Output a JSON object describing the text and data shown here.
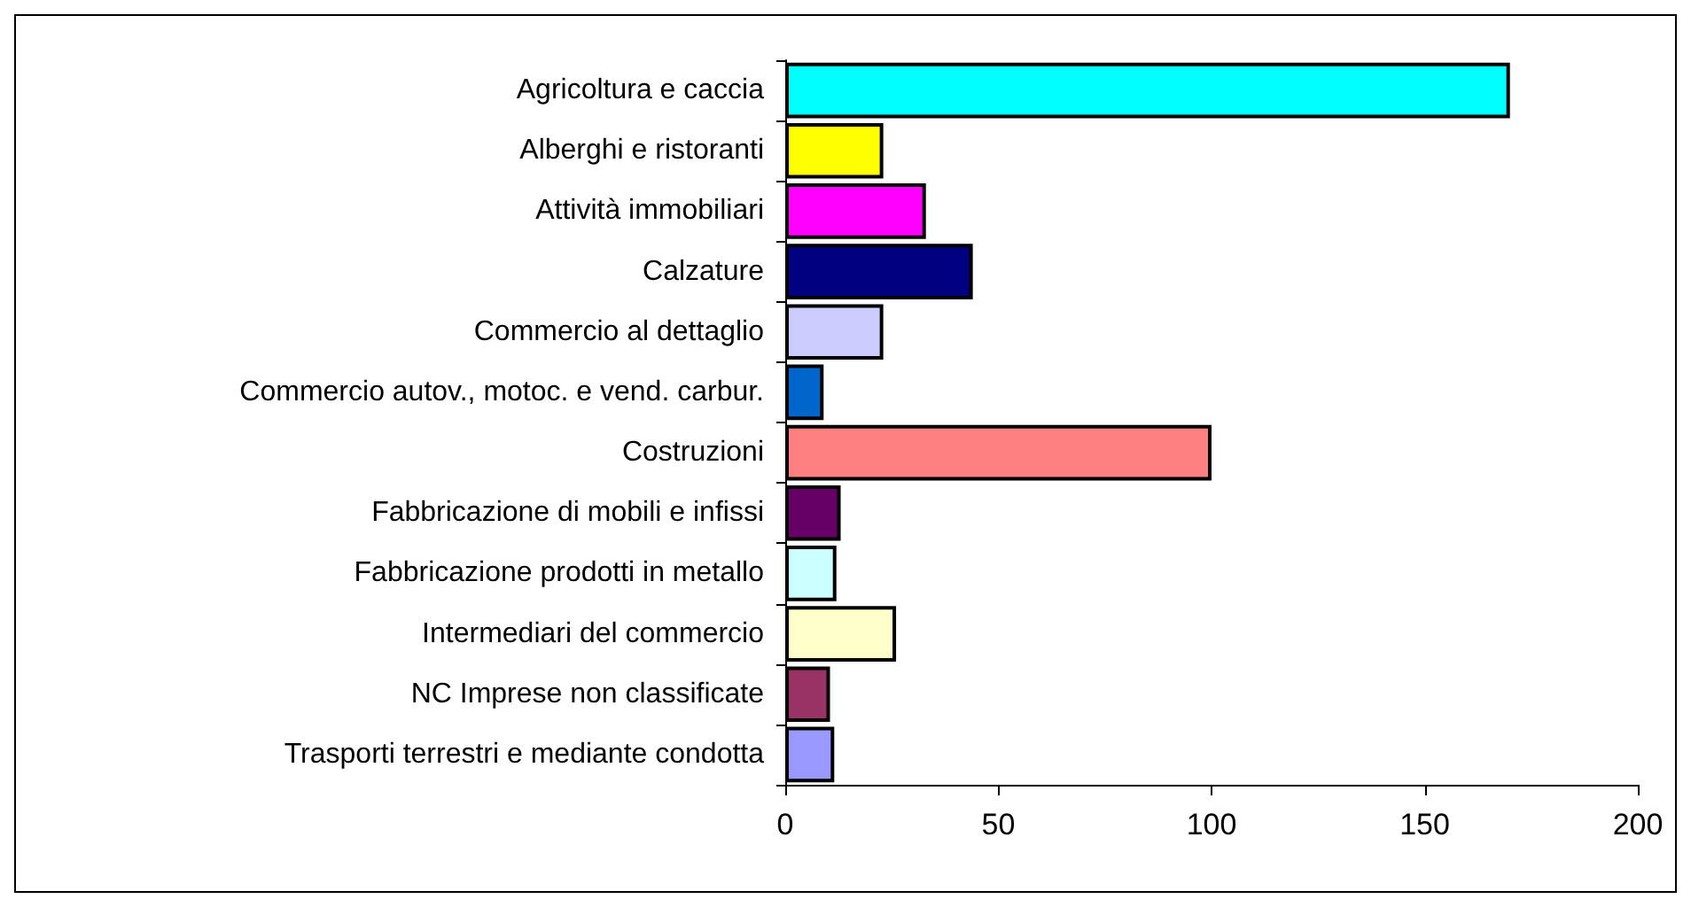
{
  "chart_data": {
    "type": "bar",
    "orientation": "horizontal",
    "categories": [
      "Agricoltura e caccia",
      "Alberghi e ristoranti",
      "Attività immobiliari",
      "Calzature",
      "Commercio al dettaglio",
      "Commercio autov., motoc. e vend. carbur.",
      "Costruzioni",
      "Fabbricazione di mobili e infissi",
      "Fabbricazione prodotti in metallo",
      "Intermediari del commercio",
      "NC Imprese non classificate",
      "Trasporti terrestri e mediante condotta"
    ],
    "values": [
      170,
      23,
      33,
      44,
      23,
      9,
      100,
      13,
      12,
      26,
      10.5,
      11.5
    ],
    "colors": [
      "#00ffff",
      "#ffff00",
      "#ff00ff",
      "#000080",
      "#ccccff",
      "#0066cc",
      "#ff8080",
      "#660066",
      "#ccffff",
      "#ffffcc",
      "#993366",
      "#9999ff"
    ],
    "xlim": [
      0,
      200
    ],
    "xticks": [
      0,
      50,
      100,
      150,
      200
    ],
    "grid": false
  }
}
